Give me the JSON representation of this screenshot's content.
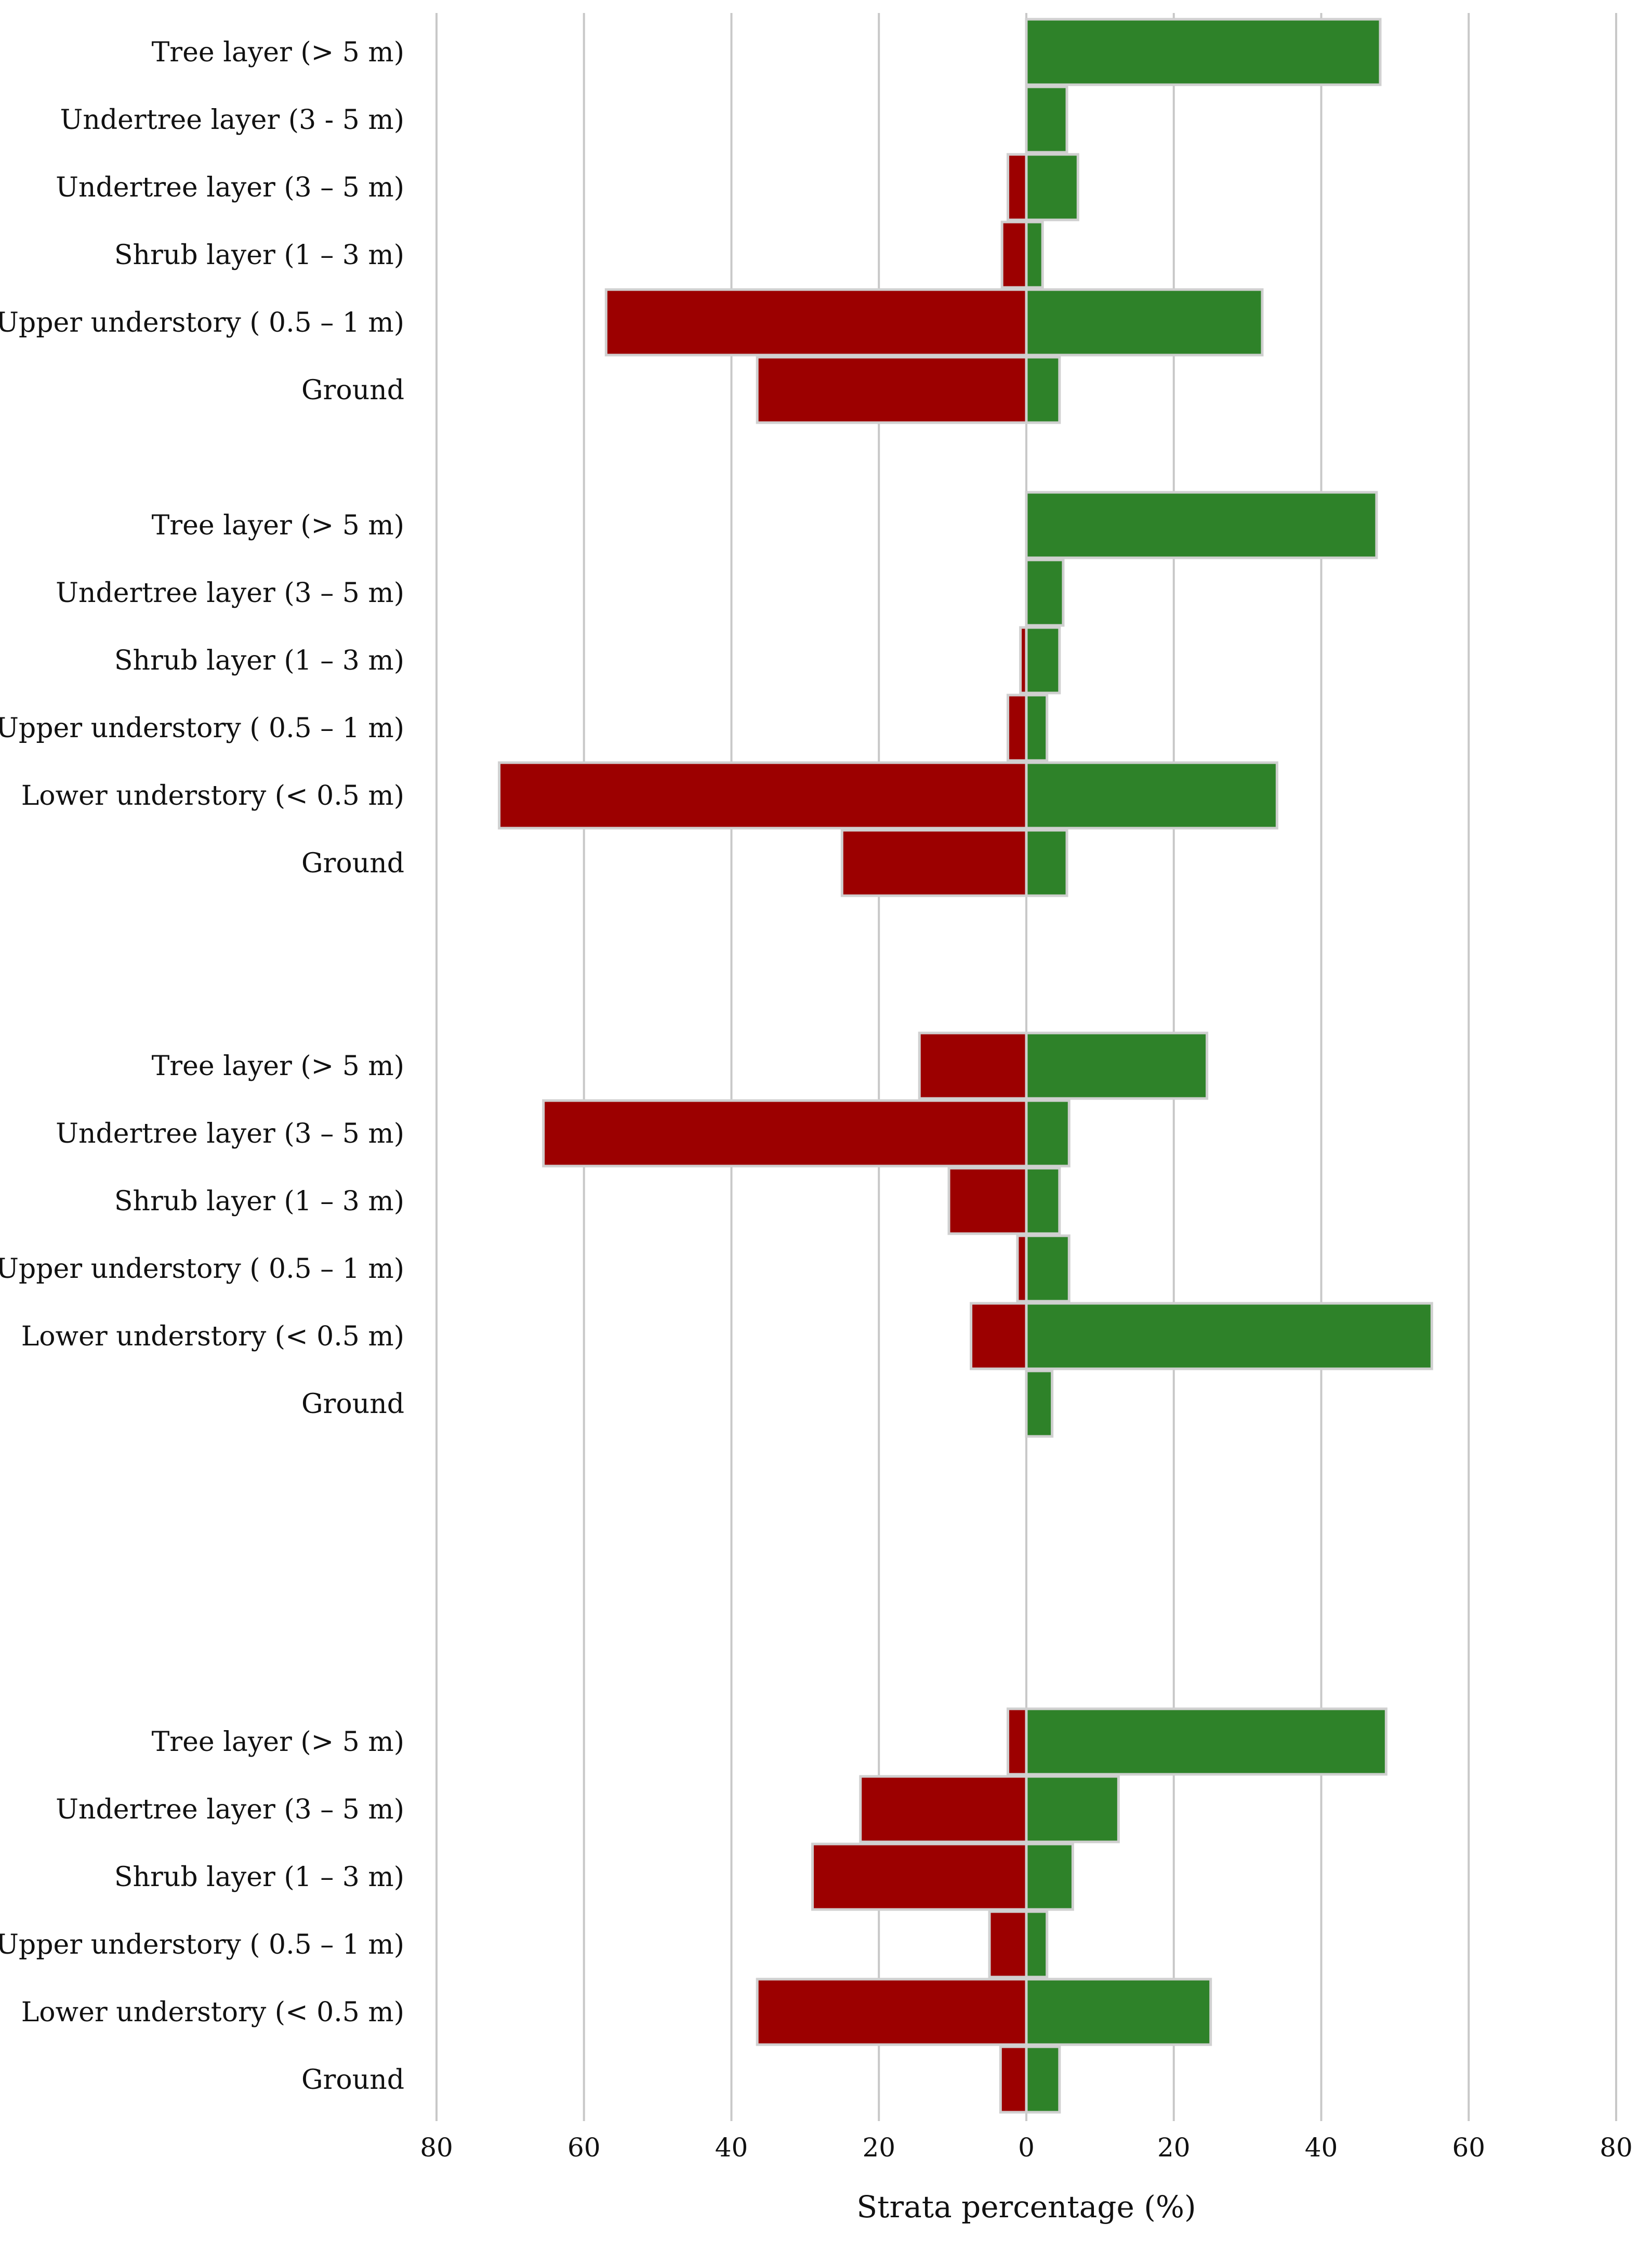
{
  "chart_data": {
    "type": "bar",
    "orientation": "horizontal-diverging",
    "xlabel": "Strata percentage (%)",
    "xlim": [
      -80,
      80
    ],
    "x_ticks": [
      -80,
      -60,
      -40,
      -20,
      0,
      20,
      40,
      60,
      80
    ],
    "x_tick_labels": [
      "80",
      "60",
      "40",
      "20",
      "0",
      "20",
      "40",
      "60",
      "80"
    ],
    "grid": "vertical",
    "colors": {
      "negative": "#9c0000",
      "positive": "#2e8229",
      "grid": "#c8c8c8",
      "bar_edge": "#d0d0d0"
    },
    "panels": [
      {
        "categories": [
          "Tree layer (> 5 m)",
          "Undertree layer (3 - 5 m)",
          "Undertree layer (3 – 5 m)",
          "Shrub layer (1 – 3 m)",
          "Upper understory ( 0.5 – 1 m)",
          "Ground"
        ],
        "series": [
          {
            "name": "negative",
            "values": [
              0,
              0,
              -2.5,
              -3.3,
              -57,
              -36.5
            ]
          },
          {
            "name": "positive",
            "values": [
              48,
              5.5,
              7,
              2.2,
              32,
              4.5
            ]
          }
        ]
      },
      {
        "categories": [
          "Tree layer (> 5 m)",
          "Undertree layer (3 – 5 m)",
          "Shrub layer (1 – 3 m)",
          "Upper understory ( 0.5 – 1 m)",
          "Lower understory (< 0.5 m)",
          "Ground"
        ],
        "series": [
          {
            "name": "negative",
            "values": [
              0,
              0,
              -0.8,
              -2.5,
              -71.5,
              -25
            ]
          },
          {
            "name": "positive",
            "values": [
              47.5,
              5,
              4.5,
              2.8,
              34,
              5.5
            ]
          }
        ]
      },
      {
        "categories": [
          "Tree layer (> 5 m)",
          "Undertree layer (3 – 5 m)",
          "Shrub layer (1 – 3 m)",
          "Upper understory ( 0.5 – 1 m)",
          "Lower understory (< 0.5 m)",
          "Ground"
        ],
        "series": [
          {
            "name": "negative",
            "values": [
              -14.5,
              -65.5,
              -10.5,
              -1.2,
              -7.5,
              0
            ]
          },
          {
            "name": "positive",
            "values": [
              24.5,
              5.8,
              4.5,
              5.8,
              55,
              3.5
            ]
          }
        ]
      },
      {
        "categories": [
          "Tree layer (> 5 m)",
          "Undertree layer (3 – 5 m)",
          "Shrub layer (1 – 3 m)",
          "Upper understory ( 0.5 – 1 m)",
          "Lower understory (< 0.5 m)",
          "Ground"
        ],
        "series": [
          {
            "name": "negative",
            "values": [
              -2.5,
              -22.5,
              -29,
              -5,
              -36.5,
              -3.5
            ]
          },
          {
            "name": "positive",
            "values": [
              48.8,
              12.5,
              6.3,
              2.8,
              25,
              4.5
            ]
          }
        ]
      }
    ]
  }
}
